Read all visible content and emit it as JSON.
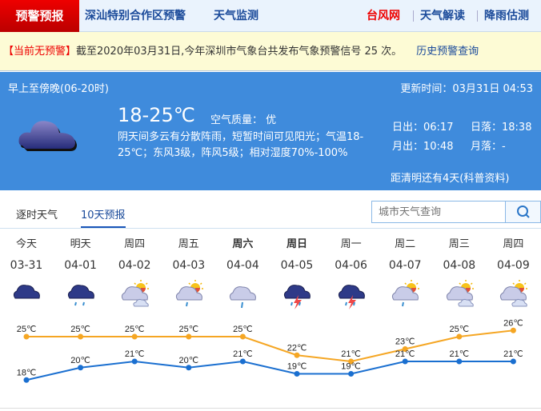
{
  "nav": {
    "brand": "预警预报",
    "items": [
      "深汕特别合作区预警",
      "天气监测"
    ],
    "right": [
      "台风网",
      "天气解读",
      "降雨估测"
    ]
  },
  "warning": {
    "status": "【当前无预警】",
    "text": "截至2020年03月31日,今年深圳市气象台共发布气象预警信号 25 次。",
    "history_link": "历史预警查询"
  },
  "today": {
    "period": "早上至傍晚(06-20时)",
    "update": "更新时间：03月31日 04:53",
    "temp": "18-25℃",
    "air_quality": "空气质量： 优",
    "desc": "阴天间多云有分散阵雨，短暂时间可见阳光；气温18-25℃；东风3级，阵风5级；相对湿度70%-100%",
    "sunrise": "日出：06:17",
    "sunset": "日落：18:38",
    "moonrise": "月出：10:48",
    "moonset": "月落：-",
    "solar_term": "距清明还有4天(科普资料)",
    "icon": "cloudy-icon"
  },
  "tabs": [
    "逐时天气",
    "10天预报"
  ],
  "search": {
    "placeholder": "城市天气查询"
  },
  "days": [
    {
      "week": "今天",
      "date": "03-31",
      "icon": "cloudy",
      "high": "25℃",
      "low": "18℃"
    },
    {
      "week": "明天",
      "date": "04-01",
      "icon": "rain",
      "high": "25℃",
      "low": "20℃"
    },
    {
      "week": "周四",
      "date": "04-02",
      "icon": "sun-cloudy",
      "high": "25℃",
      "low": "21℃"
    },
    {
      "week": "周五",
      "date": "04-03",
      "icon": "sun-cloud-rain",
      "high": "25℃",
      "low": "20℃"
    },
    {
      "week": "周六",
      "date": "04-04",
      "icon": "light-rain",
      "high": "25℃",
      "low": "21℃",
      "bold": true
    },
    {
      "week": "周日",
      "date": "04-05",
      "icon": "thunderstorm",
      "high": "22℃",
      "low": "19℃",
      "bold": true
    },
    {
      "week": "周一",
      "date": "04-06",
      "icon": "thunderstorm",
      "high": "21℃",
      "low": "19℃"
    },
    {
      "week": "周二",
      "date": "04-07",
      "icon": "sun-cloud-rain",
      "high": "23℃",
      "low": "21℃"
    },
    {
      "week": "周三",
      "date": "04-08",
      "icon": "sun-cloudy",
      "high": "25℃",
      "low": "21℃"
    },
    {
      "week": "周四",
      "date": "04-09",
      "icon": "sun-cloudy",
      "high": "26℃",
      "low": "21℃"
    }
  ],
  "chart_data": {
    "type": "line",
    "categories": [
      "03-31",
      "04-01",
      "04-02",
      "04-03",
      "04-04",
      "04-05",
      "04-06",
      "04-07",
      "04-08",
      "04-09"
    ],
    "series": [
      {
        "values": [
          25,
          25,
          25,
          25,
          25,
          22,
          21,
          23,
          25,
          26
        ],
        "color": "#f5a623"
      },
      {
        "values": [
          18,
          20,
          21,
          20,
          21,
          19,
          19,
          21,
          21,
          21
        ],
        "color": "#1a6fd0"
      }
    ],
    "unit": "℃"
  }
}
